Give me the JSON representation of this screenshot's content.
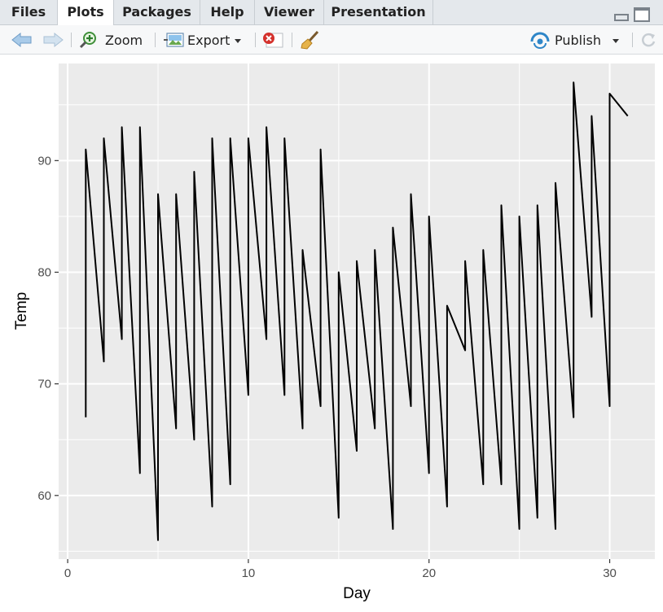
{
  "tabs": [
    {
      "label": "Files",
      "active": false
    },
    {
      "label": "Plots",
      "active": true
    },
    {
      "label": "Packages",
      "active": false
    },
    {
      "label": "Help",
      "active": false
    },
    {
      "label": "Viewer",
      "active": false
    },
    {
      "label": "Presentation",
      "active": false
    }
  ],
  "toolbar": {
    "zoom_label": "Zoom",
    "export_label": "Export",
    "publish_label": "Publish",
    "icons": [
      "back-arrow-icon",
      "forward-arrow-icon",
      "zoom-icon",
      "export-icon",
      "remove-plot-icon",
      "broom-icon",
      "publish-icon",
      "refresh-icon"
    ]
  },
  "colors": {
    "panel_bg": "#ebebeb",
    "grid": "#ffffff",
    "line": "#000000",
    "publish_accent": "#2e86c8"
  },
  "chart_data": {
    "type": "line",
    "title": "",
    "xlabel": "Day",
    "ylabel": "Temp",
    "xlim": [
      -0.5,
      32.5
    ],
    "ylim": [
      54.3,
      98.7
    ],
    "xticks": [
      "0",
      "10",
      "20",
      "30"
    ],
    "yticks": [
      "60",
      "70",
      "80",
      "90"
    ],
    "grid": true,
    "legend": "none",
    "x": [
      1,
      1,
      2,
      2,
      3,
      3,
      4,
      4,
      5,
      5,
      6,
      6,
      7,
      7,
      8,
      8,
      9,
      9,
      10,
      10,
      11,
      11,
      12,
      12,
      13,
      13,
      14,
      14,
      15,
      15,
      16,
      16,
      17,
      17,
      18,
      18,
      19,
      19,
      20,
      20,
      21,
      21,
      22,
      22,
      23,
      23,
      24,
      24,
      25,
      25,
      26,
      26,
      27,
      27,
      28,
      28,
      29,
      29,
      30,
      30,
      31
    ],
    "y": [
      67,
      91,
      72,
      92,
      74,
      93,
      62,
      93,
      56,
      87,
      66,
      87,
      65,
      89,
      59,
      92,
      61,
      92,
      69,
      92,
      74,
      93,
      69,
      92,
      66,
      82,
      68,
      91,
      58,
      80,
      64,
      81,
      66,
      82,
      57,
      84,
      68,
      87,
      62,
      85,
      59,
      77,
      73,
      81,
      61,
      82,
      61,
      86,
      57,
      85,
      58,
      86,
      57,
      88,
      67,
      97,
      76,
      94,
      68,
      96,
      94
    ]
  }
}
